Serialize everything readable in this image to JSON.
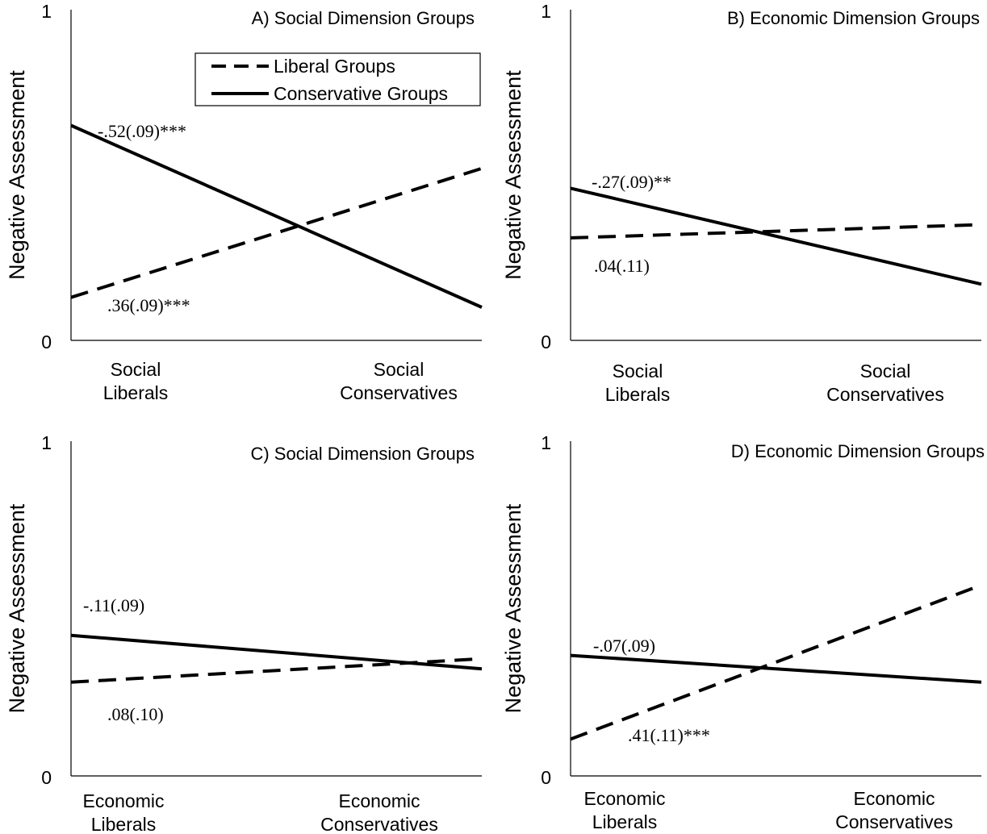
{
  "legend": {
    "items": [
      {
        "label": "Liberal Groups",
        "style": "dashed"
      },
      {
        "label": "Conservative Groups",
        "style": "solid"
      }
    ]
  },
  "chart_data": [
    {
      "type": "line",
      "title": "A) Social Dimension Groups",
      "ylabel": "Negative Assessment",
      "ylim": [
        0,
        1
      ],
      "yticks": [
        "0",
        "1"
      ],
      "categories": [
        [
          "Social",
          "Liberals"
        ],
        [
          "Social",
          "Conservatives"
        ]
      ],
      "series": [
        {
          "name": "Liberal Groups",
          "style": "dashed",
          "values": [
            0.13,
            0.52
          ],
          "annotation": ".36(.09)***"
        },
        {
          "name": "Conservative Groups",
          "style": "solid",
          "values": [
            0.65,
            0.1
          ],
          "annotation": "-.52(.09)***"
        }
      ]
    },
    {
      "type": "line",
      "title": "B) Economic Dimension Groups",
      "ylabel": "Negative Assessment",
      "ylim": [
        0,
        1
      ],
      "yticks": [
        "0",
        "1"
      ],
      "categories": [
        [
          "Social",
          "Liberals"
        ],
        [
          "Social",
          "Conservatives"
        ]
      ],
      "series": [
        {
          "name": "Liberal Groups",
          "style": "dashed",
          "values": [
            0.31,
            0.35
          ],
          "annotation": ".04(.11)"
        },
        {
          "name": "Conservative Groups",
          "style": "solid",
          "values": [
            0.46,
            0.17
          ],
          "annotation": "-.27(.09)**"
        }
      ]
    },
    {
      "type": "line",
      "title": "C) Social Dimension Groups",
      "ylabel": "Negative Assessment",
      "ylim": [
        0,
        1
      ],
      "yticks": [
        "0",
        "1"
      ],
      "categories": [
        [
          "Economic",
          "Liberals"
        ],
        [
          "Economic",
          "Conservatives"
        ]
      ],
      "series": [
        {
          "name": "Liberal Groups",
          "style": "dashed",
          "values": [
            0.28,
            0.35
          ],
          "annotation": ".08(.10)"
        },
        {
          "name": "Conservative Groups",
          "style": "solid",
          "values": [
            0.42,
            0.32
          ],
          "annotation": "-.11(.09)"
        }
      ]
    },
    {
      "type": "line",
      "title": "D) Economic Dimension Groups",
      "ylabel": "Negative Assessment",
      "ylim": [
        0,
        1
      ],
      "yticks": [
        "0",
        "1"
      ],
      "categories": [
        [
          "Economic",
          "Liberals"
        ],
        [
          "Economic",
          "Conservatives"
        ]
      ],
      "series": [
        {
          "name": "Liberal Groups",
          "style": "dashed",
          "values": [
            0.11,
            0.57
          ],
          "annotation": ".41(.11)***"
        },
        {
          "name": "Conservative Groups",
          "style": "solid",
          "values": [
            0.36,
            0.28
          ],
          "annotation": "-.07(.09)"
        }
      ]
    }
  ]
}
